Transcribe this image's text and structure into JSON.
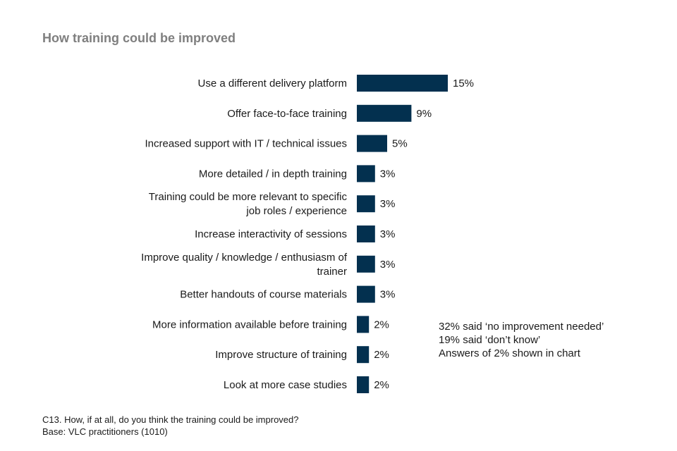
{
  "chart_data": {
    "type": "bar",
    "orientation": "horizontal",
    "title": "How training could be improved",
    "categories": [
      "Use a different delivery platform",
      "Offer face-to-face training",
      "Increased support with IT / technical issues",
      "More detailed / in depth training",
      "Training could be more relevant to specific job roles / experience",
      "Increase interactivity of sessions",
      "Improve quality / knowledge / enthusiasm of trainer",
      "Better handouts of course materials",
      "More information available before training",
      "Improve structure of training",
      "Look at more case studies"
    ],
    "values": [
      15,
      9,
      5,
      3,
      3,
      3,
      3,
      3,
      2,
      2,
      2
    ],
    "value_labels": [
      "15%",
      "9%",
      "5%",
      "3%",
      "3%",
      "3%",
      "3%",
      "3%",
      "2%",
      "2%",
      "2%"
    ],
    "unit": "%",
    "xlim": [
      0,
      100
    ],
    "grid": false,
    "bar_color": "#03304f",
    "annotations": [
      "32% said ‘no improvement needed’",
      "19% said ‘don’t know’",
      "Answers of 2% shown in chart"
    ]
  },
  "footnote": {
    "question": "C13. How, if at all, do you think the training could be improved?",
    "base": "Base: VLC practitioners (1010)"
  }
}
